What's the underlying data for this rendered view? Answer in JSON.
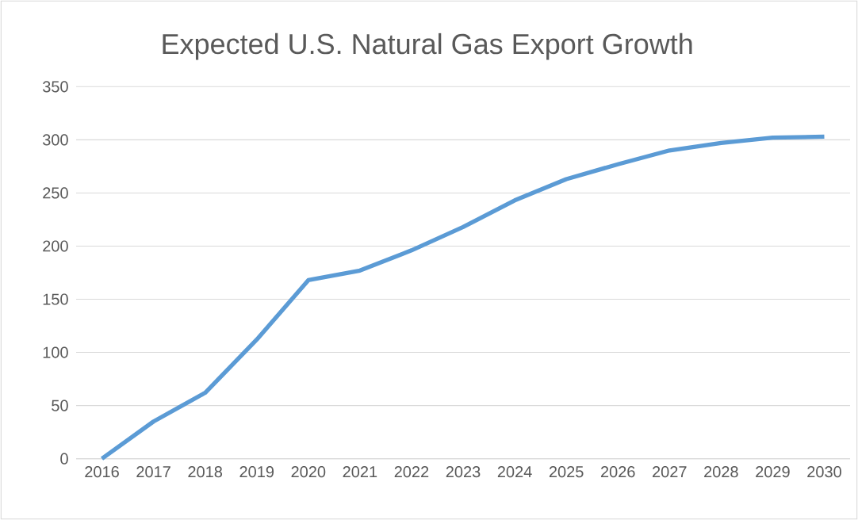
{
  "chart_data": {
    "type": "line",
    "title": "Expected U.S. Natural Gas Export Growth",
    "categories": [
      "2016",
      "2017",
      "2018",
      "2019",
      "2020",
      "2021",
      "2022",
      "2023",
      "2024",
      "2025",
      "2026",
      "2027",
      "2028",
      "2029",
      "2030"
    ],
    "values": [
      0,
      35,
      62,
      112,
      168,
      177,
      196,
      218,
      243,
      263,
      277,
      290,
      297,
      302,
      303
    ],
    "color": "#5b9bd5",
    "ylim": [
      0,
      350
    ],
    "yticks": [
      0,
      50,
      100,
      150,
      200,
      250,
      300,
      350
    ],
    "grid": "y",
    "marker": "none",
    "line_style": "solid"
  }
}
